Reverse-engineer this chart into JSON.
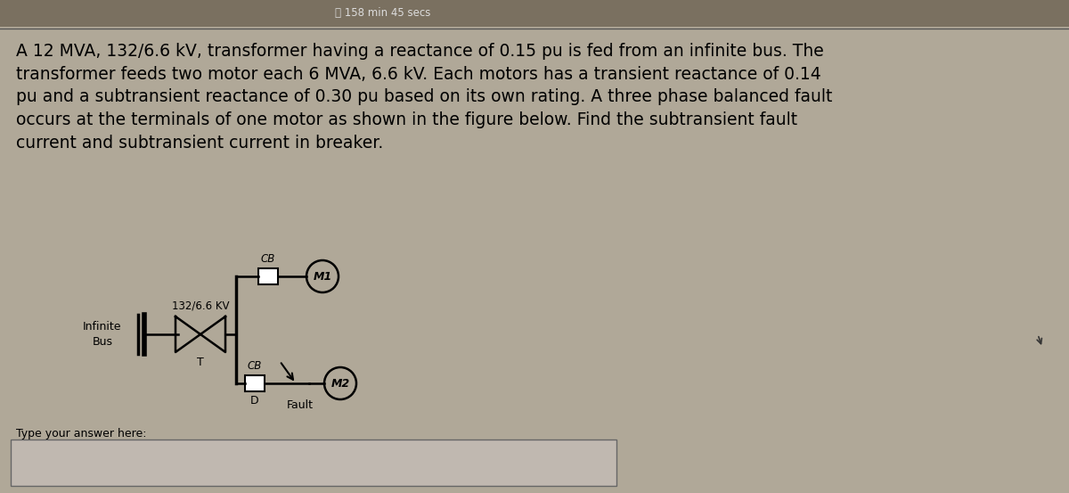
{
  "title_text": "A 12 MVA, 132/6.6 kV, transformer having a reactance of 0.15 pu is fed from an infinite bus. The\ntransformer feeds two motor each 6 MVA, 6.6 kV. Each motors has a transient reactance of 0.14\npu and a subtransient reactance of 0.30 pu based on its own rating. A three phase balanced fault\noccurs at the terminals of one motor as shown in the figure below. Find the subtransient fault\ncurrent and subtransient current in breaker.",
  "timer_text": "⏱ 158 min 45 secs",
  "type_answer_text": "Type your answer here:",
  "bg_color": "#b0a898",
  "text_color": "#000000",
  "title_fontsize": 13.5,
  "header_color": "#888070",
  "separator_color": "#666666",
  "diagram": {
    "infinite_bus_label": "Infinite\nBus",
    "transformer_label": "132/6.6 KV",
    "transformer_T_label": "T",
    "cb_label_top": "CB",
    "cb_label_bottom": "CB",
    "motor1_label": "M1",
    "motor2_label": "M2",
    "fault_label": "Fault",
    "D_label": "D"
  }
}
